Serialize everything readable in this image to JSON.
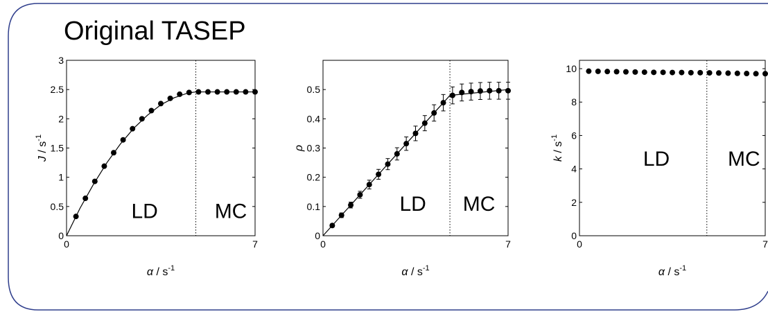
{
  "heading": "Original TASEP",
  "colors": {
    "frame": "#2f3e8c",
    "ink": "#000000"
  },
  "chart_data": [
    {
      "type": "line",
      "xlabel_symbol": "α",
      "xlabel_unit": "/ s",
      "xlabel_exp": "-1",
      "ylabel_symbol": "J",
      "ylabel_unit": "/ s",
      "ylabel_exp": "-1",
      "xlim": [
        0,
        7
      ],
      "ylim": [
        0,
        3
      ],
      "xticks": [
        0,
        7
      ],
      "yticks": [
        0,
        0.5,
        1,
        1.5,
        2,
        2.5,
        3
      ],
      "ytick_labels": [
        "0",
        "0.5",
        "1",
        "1.5",
        "2",
        "2.5",
        "3"
      ],
      "transition_x": 4.8,
      "region_labels": [
        {
          "text": "LD",
          "x": 2.9,
          "y": 0.3
        },
        {
          "text": "MC",
          "x": 6.1,
          "y": 0.3
        }
      ],
      "series": [
        {
          "x": [
            0.35,
            0.7,
            1.05,
            1.4,
            1.75,
            2.1,
            2.45,
            2.8,
            3.15,
            3.5,
            3.85,
            4.2,
            4.55,
            4.9,
            5.25,
            5.6,
            5.95,
            6.3,
            6.65,
            7.0
          ],
          "y": [
            0.33,
            0.64,
            0.93,
            1.19,
            1.42,
            1.64,
            1.83,
            2.0,
            2.14,
            2.26,
            2.35,
            2.42,
            2.45,
            2.46,
            2.46,
            2.46,
            2.46,
            2.46,
            2.46,
            2.46
          ]
        }
      ],
      "theory": {
        "x": [
          0,
          0.5,
          1,
          1.5,
          2,
          2.5,
          3,
          3.5,
          4,
          4.5,
          4.8,
          5.5,
          6,
          6.5,
          7
        ],
        "y": [
          0,
          0.47,
          0.88,
          1.25,
          1.57,
          1.84,
          2.06,
          2.24,
          2.36,
          2.44,
          2.46,
          2.46,
          2.46,
          2.46,
          2.46
        ]
      }
    },
    {
      "type": "scatter",
      "xlabel_symbol": "α",
      "xlabel_unit": "/ s",
      "xlabel_exp": "-1",
      "ylabel_symbol": "ρ",
      "xlim": [
        0,
        7
      ],
      "ylim": [
        0,
        0.6
      ],
      "xticks": [
        0,
        7
      ],
      "yticks": [
        0,
        0.1,
        0.2,
        0.3,
        0.4,
        0.5
      ],
      "ytick_labels": [
        "0",
        "0.1",
        "0.2",
        "0.3",
        "0.4",
        "0.5"
      ],
      "transition_x": 4.8,
      "region_labels": [
        {
          "text": "LD",
          "x": 3.4,
          "y": 0.085
        },
        {
          "text": "MC",
          "x": 5.9,
          "y": 0.085
        }
      ],
      "series": [
        {
          "x": [
            0.35,
            0.7,
            1.05,
            1.4,
            1.75,
            2.1,
            2.45,
            2.8,
            3.15,
            3.5,
            3.85,
            4.2,
            4.55,
            4.9,
            5.25,
            5.6,
            5.95,
            6.3,
            6.65,
            7.0
          ],
          "y": [
            0.035,
            0.07,
            0.105,
            0.14,
            0.175,
            0.21,
            0.245,
            0.28,
            0.315,
            0.35,
            0.385,
            0.42,
            0.455,
            0.48,
            0.49,
            0.493,
            0.495,
            0.496,
            0.496,
            0.496
          ],
          "err": [
            0.005,
            0.008,
            0.01,
            0.012,
            0.015,
            0.017,
            0.019,
            0.021,
            0.023,
            0.025,
            0.026,
            0.028,
            0.028,
            0.029,
            0.029,
            0.029,
            0.029,
            0.029,
            0.029,
            0.029
          ]
        }
      ],
      "theory": {
        "x": [
          0,
          4.8,
          7
        ],
        "y": [
          0,
          0.48,
          0.5
        ]
      }
    },
    {
      "type": "scatter",
      "xlabel_symbol": "α",
      "xlabel_unit": "/ s",
      "xlabel_exp": "-1",
      "ylabel_symbol": "k",
      "ylabel_unit": "/ s",
      "ylabel_exp": "-1",
      "xlim": [
        0,
        7
      ],
      "ylim": [
        0,
        10.5
      ],
      "xticks": [
        0,
        7
      ],
      "yticks": [
        0,
        2,
        4,
        6,
        8,
        10
      ],
      "ytick_labels": [
        "0",
        "2",
        "4",
        "6",
        "8",
        "10"
      ],
      "transition_x": 4.8,
      "region_labels": [
        {
          "text": "LD",
          "x": 2.9,
          "y": 4.2
        },
        {
          "text": "MC",
          "x": 6.2,
          "y": 4.2
        }
      ],
      "series": [
        {
          "x": [
            0.35,
            0.7,
            1.05,
            1.4,
            1.75,
            2.1,
            2.45,
            2.8,
            3.15,
            3.5,
            3.85,
            4.2,
            4.55,
            4.9,
            5.25,
            5.6,
            5.95,
            6.3,
            6.65,
            7.0
          ],
          "y": [
            9.85,
            9.84,
            9.83,
            9.82,
            9.81,
            9.8,
            9.79,
            9.78,
            9.78,
            9.77,
            9.77,
            9.76,
            9.76,
            9.75,
            9.74,
            9.73,
            9.72,
            9.71,
            9.7,
            9.7
          ]
        }
      ],
      "theory": null
    }
  ]
}
